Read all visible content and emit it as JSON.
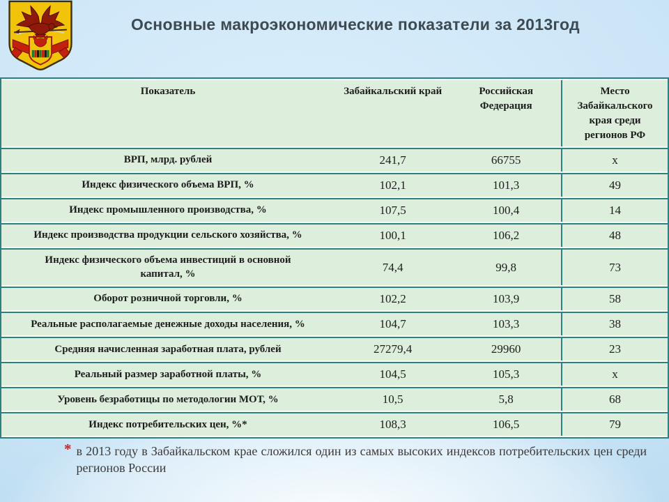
{
  "title": "Основные макроэкономические показатели за 2013год",
  "emblem": {
    "name": "Герб Забайкальского края"
  },
  "table": {
    "columns": [
      "Показатель",
      "Забайкальский край",
      "Российская Федерация",
      "Место Забайкальского края среди регионов РФ"
    ],
    "rows": [
      [
        "ВРП, млрд. рублей",
        "241,7",
        "66755",
        "х"
      ],
      [
        "Индекс физического объема ВРП, %",
        "102,1",
        "101,3",
        "49"
      ],
      [
        "Индекс промышленного производства, %",
        "107,5",
        "100,4",
        "14"
      ],
      [
        "Индекс производства продукции сельского хозяйства, %",
        "100,1",
        "106,2",
        "48"
      ],
      [
        "Индекс физического объема инвестиций в основной капитал, %",
        "74,4",
        "99,8",
        "73"
      ],
      [
        "Оборот розничной торговли, %",
        "102,2",
        "103,9",
        "58"
      ],
      [
        "Реальные располагаемые денежные доходы населения, %",
        "104,7",
        "103,3",
        "38"
      ],
      [
        "Средняя начисленная заработная плата, рублей",
        "27279,4",
        "29960",
        "23"
      ],
      [
        "Реальный размер заработной платы, %",
        "104,5",
        "105,3",
        "х"
      ],
      [
        "Уровень безработицы по методологии МОТ, %",
        "10,5",
        "5,8",
        "68"
      ],
      [
        "Индекс потребительских цен, %*",
        "108,3",
        "106,5",
        "79"
      ]
    ]
  },
  "footnote": {
    "marker": "*",
    "text": "в 2013 году в Забайкальском крае сложился один из самых высоких индексов потребительских цен среди регионов России"
  },
  "colors": {
    "table_border": "#2d7f82",
    "row_bg": "#ddeedd",
    "title_text": "#3d4a52",
    "accent_red": "#cc2222",
    "emblem_gold": "#f2c409",
    "emblem_red": "#8f1a0a"
  }
}
